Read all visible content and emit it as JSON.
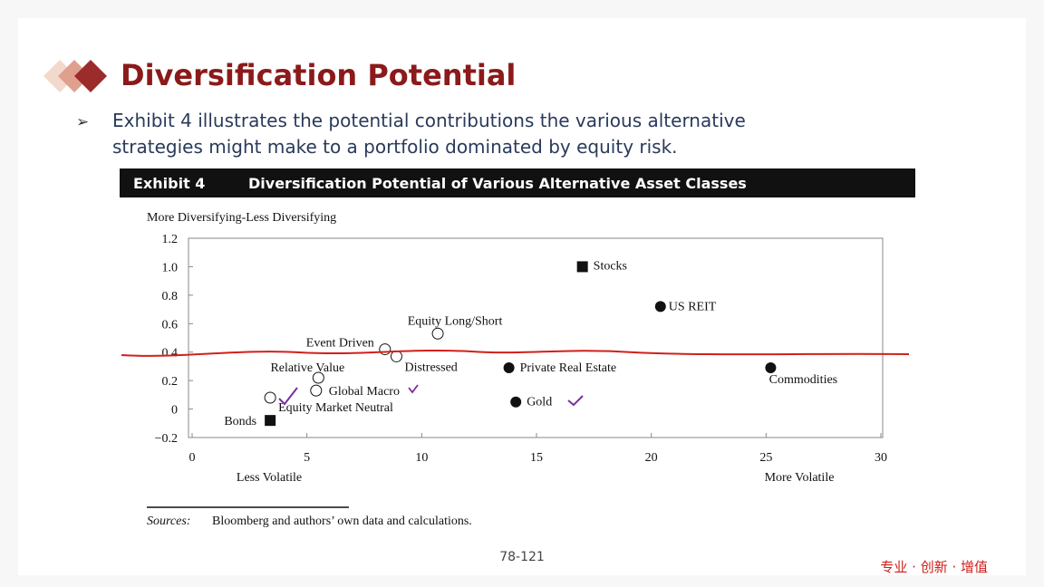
{
  "header": {
    "title": "Diversification Potential"
  },
  "bullet": {
    "symbol": "➢",
    "lines": [
      "Exhibit 4 illustrates the potential contributions the various alternative",
      "strategies might make to a portfolio dominated by equity risk."
    ]
  },
  "exhibit": {
    "number": "Exhibit 4",
    "title": "Diversification Potential of Various Alternative Asset Classes"
  },
  "chart_data": {
    "type": "scatter",
    "y_label": "More Diversifying-Less Diversifying",
    "x_label_left": "Less Volatile",
    "x_label_right": "More Volatile",
    "xlim": [
      0,
      30
    ],
    "xticks": [
      0,
      5,
      10,
      15,
      20,
      25,
      30
    ],
    "ylim": [
      -0.2,
      1.2
    ],
    "yticks": [
      {
        "value": -0.2,
        "label": "−0.2"
      },
      0,
      0.2,
      0.4,
      0.6,
      0.8,
      {
        "value": 1.0,
        "label": "1.0"
      },
      1.2
    ],
    "color": "#111111",
    "points": [
      {
        "label": "Stocks",
        "x": 17,
        "y": 1.0,
        "marker": "square"
      },
      {
        "label": "US REIT",
        "x": 20.4,
        "y": 0.72,
        "marker": "filled"
      },
      {
        "label": "Equity Long/Short",
        "x": 10.7,
        "y": 0.53,
        "marker": "open"
      },
      {
        "label": "Event Driven",
        "x": 8.4,
        "y": 0.42,
        "marker": "open"
      },
      {
        "label": "Distressed",
        "x": 8.9,
        "y": 0.37,
        "marker": "open"
      },
      {
        "label": "Private Real Estate",
        "x": 13.8,
        "y": 0.29,
        "marker": "filled"
      },
      {
        "label": "Commodities",
        "x": 25.2,
        "y": 0.29,
        "marker": "filled"
      },
      {
        "label": "Relative Value",
        "x": 5.5,
        "y": 0.22,
        "marker": "open"
      },
      {
        "label": "Global Macro",
        "x": 5.4,
        "y": 0.13,
        "marker": "open"
      },
      {
        "label": "Gold",
        "x": 14.1,
        "y": 0.05,
        "marker": "filled"
      },
      {
        "label": "Equity Market Neutral",
        "x": 3.4,
        "y": 0.08,
        "marker": "open"
      },
      {
        "label": "Bonds",
        "x": 3.4,
        "y": -0.08,
        "marker": "square"
      }
    ]
  },
  "source": {
    "prefix": "Sources:",
    "text": "Bloomberg and authors’ own data and calculations."
  },
  "page_number": "78-121",
  "slogan": "专业 · 创新 · 增值"
}
